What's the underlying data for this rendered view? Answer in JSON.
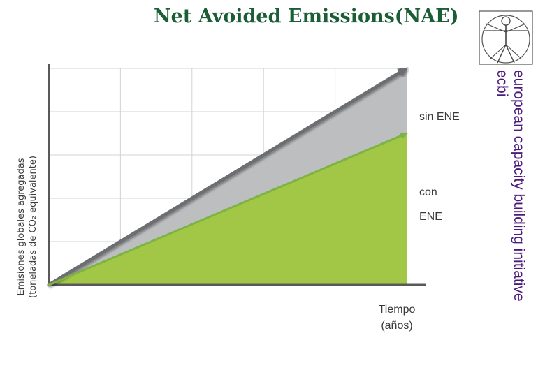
{
  "slide": {
    "title": "Net Avoided Emissions(NAE)"
  },
  "organization": {
    "name_line1": "european capacity building initiative",
    "name_line2": "ecbi",
    "logo_icon": "vitruvian-man-icon"
  },
  "chart_data": {
    "type": "area",
    "title": "",
    "xlabel_line1": "Tiempo",
    "xlabel_line2": "(años)",
    "ylabel_line1": "Emisiones globales agregadas",
    "ylabel_line2": "(toneladas de CO₂ equivalente)",
    "x": [
      0,
      1
    ],
    "xlim": [
      0,
      1
    ],
    "ylim": [
      0,
      1
    ],
    "grid": true,
    "grid_cols": 5,
    "grid_rows": 5,
    "series": [
      {
        "label_lines": [
          "sin ENE"
        ],
        "values": [
          0,
          1.0
        ],
        "color": "#bcbec0"
      },
      {
        "label_lines": [
          "con",
          "ENE"
        ],
        "values": [
          0,
          0.7
        ],
        "color": "#a2c746"
      }
    ],
    "colors": {
      "sin_ene_line": "#6d6e71",
      "con_ene_line": "#7cb342",
      "axis": "#58595b",
      "grid": "#d1d3d4"
    }
  }
}
